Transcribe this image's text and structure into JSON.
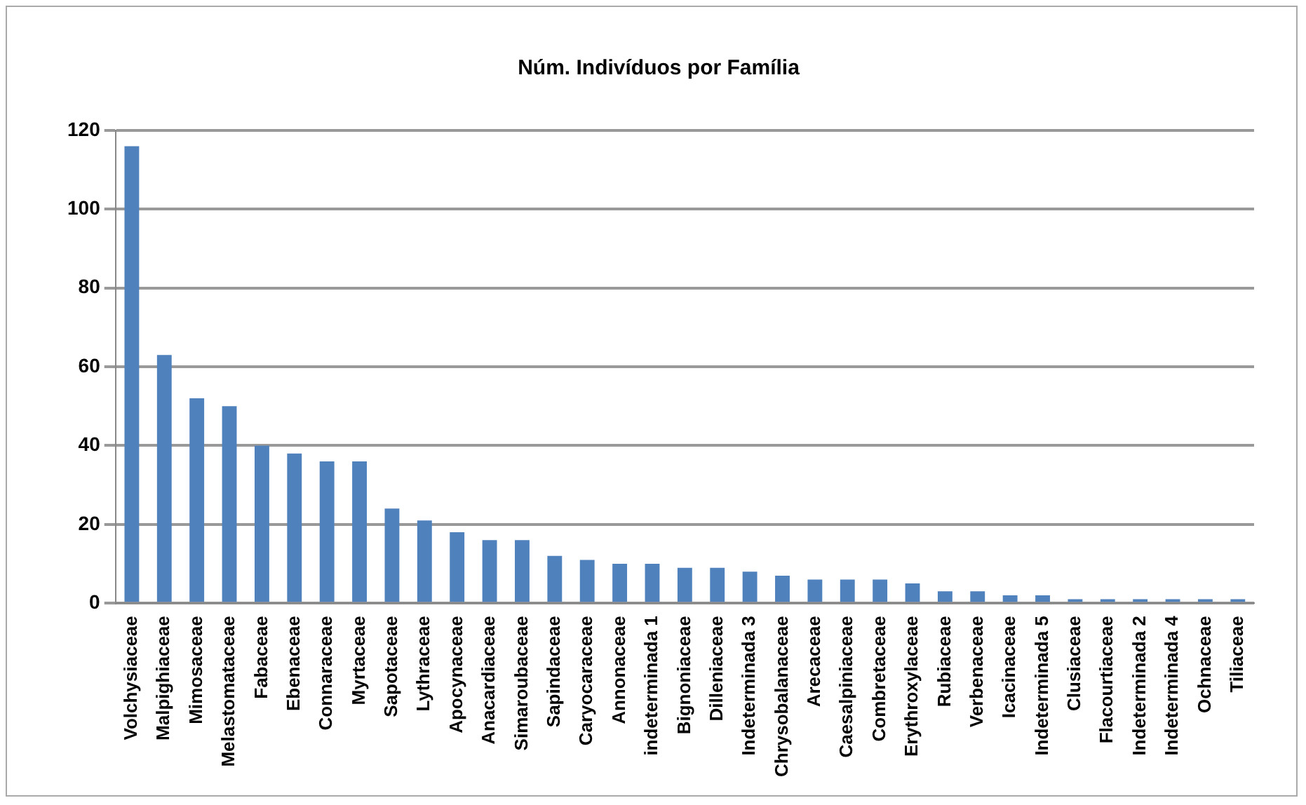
{
  "chart_data": {
    "type": "bar",
    "title": "Núm. Indivíduos por Família",
    "categories": [
      "Volchysiaceae",
      "Malpighiaceae",
      "Mimosaceae",
      "Melastomataceae",
      "Fabaceae",
      "Ebenaceae",
      "Connaraceae",
      "Myrtaceae",
      "Sapotaceae",
      "Lythraceae",
      "Apocynaceae",
      "Anacardiaceae",
      "Simaroubaceae",
      "Sapindaceae",
      "Caryocaraceae",
      "Annonaceae",
      "indeterminada 1",
      "Bignoniaceae",
      "Dilleniaceae",
      "Indeterminada 3",
      "Chrysobalanaceae",
      "Arecaceae",
      "Caesalpiniaceae",
      "Combretaceae",
      "Erythroxylaceae",
      "Rubiaceae",
      "Verbenaceae",
      "Icacinaceae",
      "Indeterminada 5",
      "Clusiaceae",
      "Flacourtiaceae",
      "Indeterminada 2",
      "Indeterminada 4",
      "Ochnaceae",
      "Tiliaceae"
    ],
    "values": [
      116,
      63,
      52,
      50,
      40,
      38,
      36,
      36,
      24,
      21,
      18,
      16,
      16,
      12,
      11,
      10,
      10,
      9,
      9,
      8,
      7,
      6,
      6,
      6,
      5,
      3,
      3,
      2,
      2,
      1,
      1,
      1,
      1,
      1,
      1
    ],
    "color": "#4f81bd",
    "ylim": [
      0,
      120
    ],
    "yticks": [
      0,
      20,
      40,
      60,
      80,
      100,
      120
    ],
    "grid": "y",
    "legend": false
  }
}
